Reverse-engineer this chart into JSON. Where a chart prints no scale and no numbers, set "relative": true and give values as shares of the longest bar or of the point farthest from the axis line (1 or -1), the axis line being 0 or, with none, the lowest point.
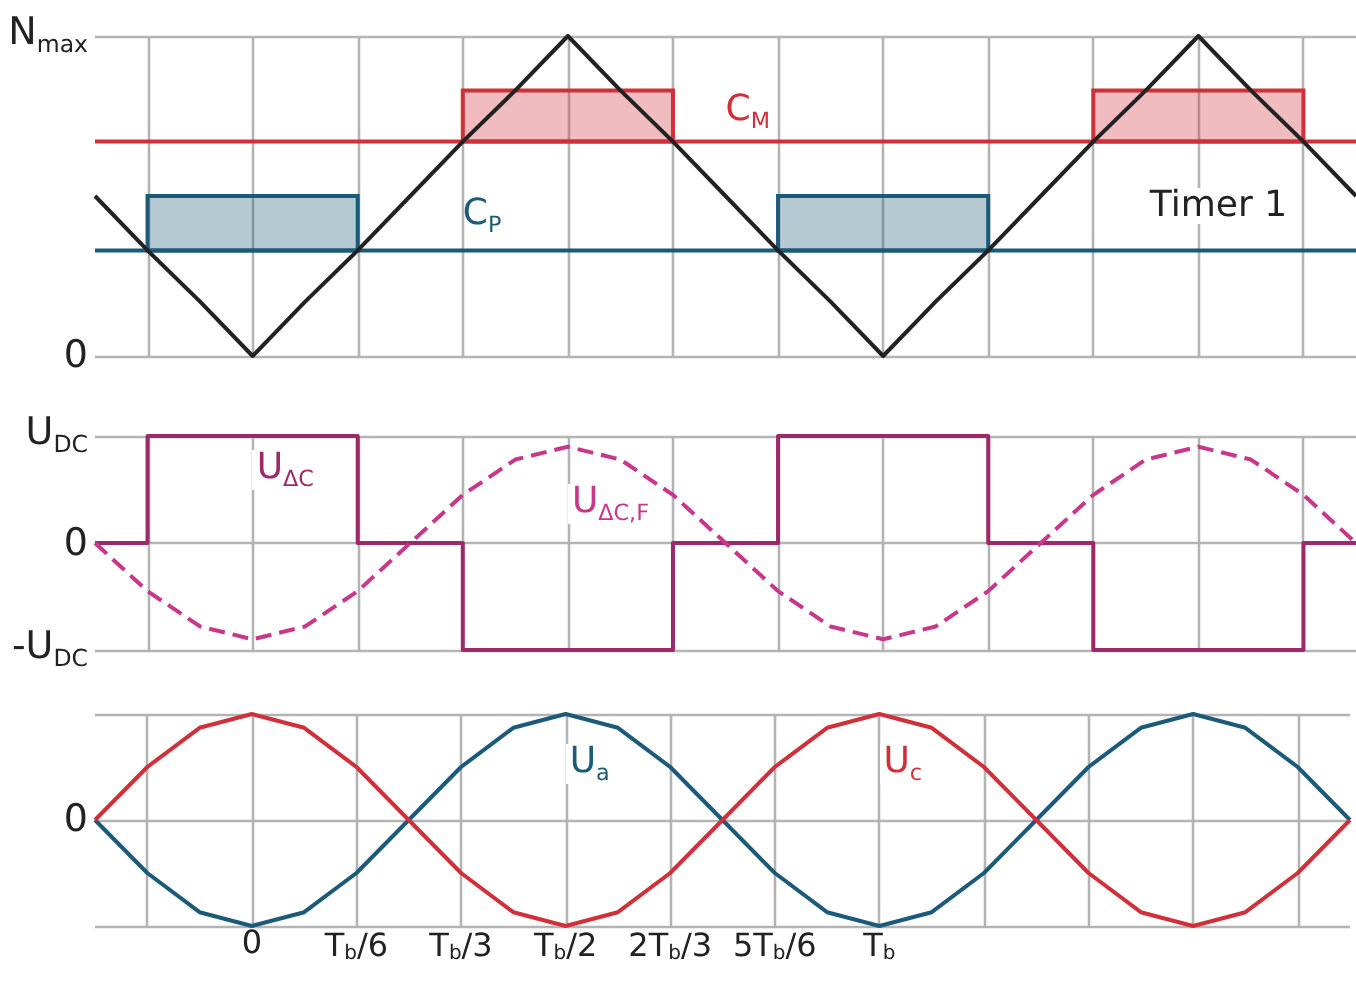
{
  "chart_data": [
    {
      "type": "line",
      "marker": "none",
      "grid": true,
      "relative": true,
      "tick_labels": false,
      "categories": [
        null,
        null,
        null,
        null,
        null,
        null,
        null,
        null,
        null,
        null,
        null,
        null,
        null,
        null,
        null,
        null,
        null,
        null,
        null,
        null,
        null,
        null,
        null,
        null,
        null
      ],
      "annotations": [
        "N$_{max}$",
        "0"
      ],
      "series": [
        {
          "name": "C$_{M}$",
          "color": "#d0303a",
          "values": [
            0.67,
            0.67,
            0.67,
            0.67,
            0.67,
            0.67,
            0.67,
            0.67,
            0.67,
            0.67,
            0.67,
            0.67,
            0.67,
            0.67,
            0.67,
            0.67,
            0.67,
            0.67,
            0.67,
            0.67,
            0.67,
            0.67,
            0.67,
            0.67,
            0.67
          ],
          "lower": [
            null,
            null,
            null,
            null,
            null,
            null,
            null,
            0.67,
            0.67,
            0.67,
            0.67,
            0.67,
            null,
            null,
            null,
            null,
            null,
            null,
            null,
            0.67,
            0.67,
            0.67,
            0.67,
            0.67,
            null
          ],
          "upper": [
            null,
            null,
            null,
            null,
            null,
            null,
            null,
            0.83,
            0.83,
            0.83,
            0.83,
            0.83,
            null,
            null,
            null,
            null,
            null,
            null,
            null,
            0.83,
            0.83,
            0.83,
            0.83,
            0.83,
            null
          ]
        },
        {
          "name": "C$_{P}$",
          "color": "#1b5a78",
          "values": [
            0.33,
            0.33,
            0.33,
            0.33,
            0.33,
            0.33,
            0.33,
            0.33,
            0.33,
            0.33,
            0.33,
            0.33,
            0.33,
            0.33,
            0.33,
            0.33,
            0.33,
            0.33,
            0.33,
            0.33,
            0.33,
            0.33,
            0.33,
            0.33,
            0.33
          ],
          "lower": [
            null,
            0.33,
            0.33,
            0.33,
            0.33,
            0.33,
            null,
            null,
            null,
            null,
            null,
            null,
            null,
            0.33,
            0.33,
            0.33,
            0.33,
            0.33,
            null,
            null,
            null,
            null,
            null,
            null,
            null
          ],
          "upper": [
            null,
            0.5,
            0.5,
            0.5,
            0.5,
            0.5,
            null,
            null,
            null,
            null,
            null,
            null,
            null,
            0.5,
            0.5,
            0.5,
            0.5,
            0.5,
            null,
            null,
            null,
            null,
            null,
            null,
            null
          ]
        },
        {
          "name": "Timer 1",
          "color": "#222222",
          "values": [
            0.5,
            0.33,
            0.17,
            0,
            0.17,
            0.33,
            0.5,
            0.67,
            0.83,
            1,
            0.83,
            0.67,
            0.5,
            0.33,
            0.17,
            0,
            0.17,
            0.33,
            0.5,
            0.67,
            0.83,
            1,
            0.83,
            0.67,
            0.5
          ]
        }
      ]
    },
    {
      "type": "line",
      "marker": "none",
      "grid": true,
      "relative": true,
      "tick_labels": false,
      "categories": [
        null,
        null,
        null,
        null,
        null,
        null,
        null,
        null,
        null,
        null,
        null,
        null,
        null,
        null,
        null,
        null,
        null,
        null,
        null,
        null,
        null,
        null,
        null,
        null,
        null
      ],
      "annotations": [
        "U$_{DC}$",
        "0",
        "-U$_{DC}$"
      ],
      "series": [
        {
          "name": "U$_{ΔC}$",
          "type": "step",
          "color": "#9c2a6a",
          "values": [
            0,
            1,
            1,
            1,
            1,
            0,
            0,
            -1,
            -1,
            -1,
            -1,
            0,
            0,
            1,
            1,
            1,
            1,
            0,
            0,
            -1,
            -1,
            -1,
            -1,
            0,
            0
          ]
        },
        {
          "name": "U$_{ΔC,F}$",
          "color": "#c8378a",
          "line_style": "dashed",
          "values": [
            0,
            -0.45,
            -0.78,
            -0.9,
            -0.78,
            -0.45,
            0,
            0.45,
            0.78,
            0.9,
            0.78,
            0.45,
            0,
            -0.45,
            -0.78,
            -0.9,
            -0.78,
            -0.45,
            0,
            0.45,
            0.78,
            0.9,
            0.78,
            0.45,
            0
          ]
        }
      ]
    },
    {
      "type": "line",
      "marker": "none",
      "grid": true,
      "relative": true,
      "tick_labels": "x",
      "categories": [
        null,
        null,
        null,
        "0",
        null,
        "T$_{b}$/6",
        null,
        "T$_{b}$/3",
        null,
        "T$_{b}$/2",
        null,
        "2T$_{b}$/3",
        null,
        "5T$_{b}$/6",
        null,
        "T$_{b}$",
        null,
        null,
        null,
        null,
        null,
        null,
        null,
        null,
        null
      ],
      "annotations": [
        "0"
      ],
      "series": [
        {
          "name": "U$_{a}$",
          "color": "#1b5a78",
          "values": [
            0,
            -0.5,
            -0.87,
            -1,
            -0.87,
            -0.5,
            0,
            0.5,
            0.87,
            1,
            0.87,
            0.5,
            0,
            -0.5,
            -0.87,
            -1,
            -0.87,
            -0.5,
            0,
            0.5,
            0.87,
            1,
            0.87,
            0.5,
            0
          ]
        },
        {
          "name": "U$_{c}$",
          "color": "#d0303a",
          "values": [
            0,
            0.5,
            0.87,
            1,
            0.87,
            0.5,
            0,
            -0.5,
            -0.87,
            -1,
            -0.87,
            -0.5,
            0,
            0.5,
            0.87,
            1,
            0.87,
            0.5,
            0,
            -0.5,
            -0.87,
            -1,
            -0.87,
            -0.5,
            0
          ]
        }
      ]
    }
  ]
}
